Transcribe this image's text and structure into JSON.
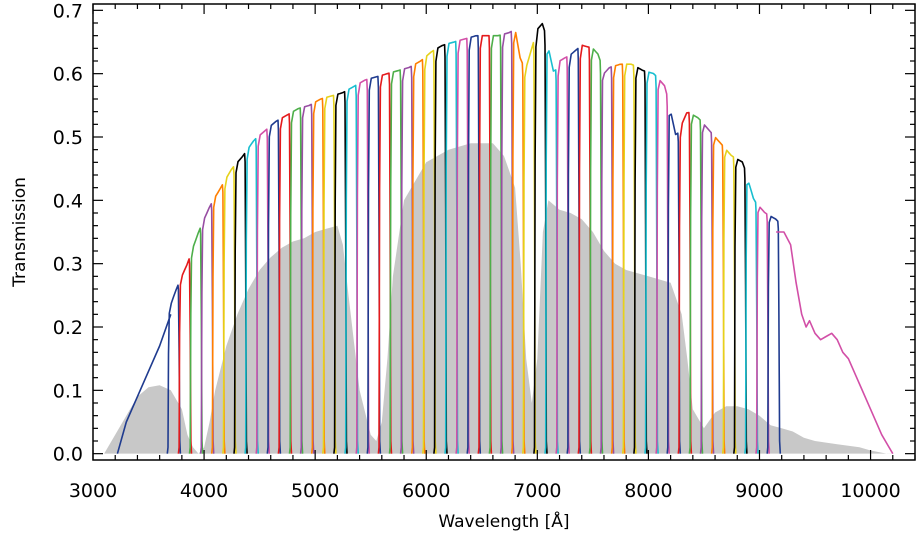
{
  "chart_data": {
    "type": "line",
    "title": "",
    "xlabel": "Wavelength [Å]",
    "ylabel": "Transmission",
    "xlim": [
      3000,
      10400
    ],
    "ylim": [
      -0.01,
      0.71
    ],
    "xticks": [
      3000,
      4000,
      5000,
      6000,
      7000,
      8000,
      9000,
      10000
    ],
    "yticks": [
      0.0,
      0.1,
      0.2,
      0.3,
      0.4,
      0.5,
      0.6,
      0.7
    ],
    "ytick_labels": [
      "0.0",
      "0.1",
      "0.2",
      "0.3",
      "0.4",
      "0.5",
      "0.6",
      "0.7"
    ],
    "x_minor_step": 200,
    "y_minor_step": 0.02,
    "grid": false,
    "legend": "none",
    "series_colors": [
      "#1f3b8f",
      "#e41a1c",
      "#4daf4a",
      "#984ea3",
      "#ff7f00",
      "#e6d21a",
      "#000000",
      "#17becf",
      "#d24fa7"
    ],
    "shaded_area": {
      "color": "#c8c8c8",
      "x": [
        3100,
        3200,
        3300,
        3400,
        3500,
        3600,
        3700,
        3800,
        3850,
        3900,
        3950,
        4000,
        4050,
        4100,
        4200,
        4300,
        4400,
        4500,
        4600,
        4700,
        4800,
        4900,
        5000,
        5100,
        5200,
        5250,
        5300,
        5400,
        5500,
        5550,
        5600,
        5650,
        5700,
        5800,
        6000,
        6200,
        6400,
        6600,
        6700,
        6800,
        6850,
        6900,
        6950,
        7000,
        7050,
        7100,
        7200,
        7300,
        7400,
        7500,
        7600,
        7700,
        7800,
        8000,
        8200,
        8300,
        8350,
        8400,
        8500,
        8600,
        8700,
        8800,
        8900,
        9000,
        9100,
        9200,
        9300,
        9400,
        9500,
        9700,
        9900,
        10000,
        10150,
        10200
      ],
      "y": [
        0.0,
        0.03,
        0.06,
        0.09,
        0.105,
        0.108,
        0.1,
        0.07,
        0.03,
        0.01,
        0.0,
        0.01,
        0.05,
        0.1,
        0.17,
        0.22,
        0.26,
        0.29,
        0.31,
        0.325,
        0.335,
        0.34,
        0.35,
        0.355,
        0.36,
        0.33,
        0.25,
        0.1,
        0.03,
        0.02,
        0.05,
        0.15,
        0.28,
        0.4,
        0.46,
        0.48,
        0.49,
        0.49,
        0.47,
        0.42,
        0.3,
        0.15,
        0.08,
        0.15,
        0.35,
        0.4,
        0.385,
        0.38,
        0.37,
        0.35,
        0.32,
        0.3,
        0.29,
        0.28,
        0.27,
        0.22,
        0.15,
        0.07,
        0.04,
        0.065,
        0.075,
        0.075,
        0.07,
        0.06,
        0.045,
        0.04,
        0.035,
        0.025,
        0.02,
        0.015,
        0.01,
        0.005,
        0.0,
        0.0
      ]
    },
    "envelope": {
      "x": [
        3250,
        3350,
        3450,
        3550,
        3650,
        3750,
        3850,
        3950,
        4050,
        4150,
        4250,
        4350,
        4450,
        4550,
        4650,
        4750,
        4850,
        4950,
        5050,
        5150,
        5250,
        5350,
        5450,
        5550,
        5650,
        5750,
        5850,
        5950,
        6050,
        6150,
        6250,
        6350,
        6450,
        6550,
        6650,
        6750,
        6800,
        6850,
        6900,
        6950,
        7000,
        7050,
        7100,
        7150,
        7200,
        7300,
        7400,
        7500,
        7550,
        7600,
        7650,
        7750,
        7850,
        7950,
        8050,
        8150,
        8250,
        8350,
        8450,
        8550,
        8650,
        8750,
        8850,
        8950,
        9050,
        9150,
        9250
      ],
      "y": [
        0.04,
        0.08,
        0.12,
        0.16,
        0.21,
        0.26,
        0.3,
        0.35,
        0.39,
        0.42,
        0.45,
        0.47,
        0.495,
        0.51,
        0.525,
        0.535,
        0.545,
        0.55,
        0.56,
        0.565,
        0.57,
        0.58,
        0.59,
        0.595,
        0.6,
        0.605,
        0.61,
        0.62,
        0.635,
        0.645,
        0.65,
        0.655,
        0.66,
        0.66,
        0.66,
        0.665,
        0.67,
        0.62,
        0.61,
        0.64,
        0.67,
        0.68,
        0.64,
        0.6,
        0.62,
        0.63,
        0.645,
        0.64,
        0.63,
        0.6,
        0.61,
        0.615,
        0.615,
        0.605,
        0.6,
        0.58,
        0.5,
        0.54,
        0.53,
        0.51,
        0.49,
        0.47,
        0.46,
        0.4,
        0.38,
        0.37,
        0.35
      ]
    },
    "filter_centers": [
      3720,
      3820,
      3920,
      4020,
      4120,
      4220,
      4320,
      4420,
      4520,
      4620,
      4720,
      4820,
      4920,
      5020,
      5120,
      5220,
      5320,
      5420,
      5520,
      5620,
      5720,
      5820,
      5920,
      6020,
      6120,
      6220,
      6320,
      6420,
      6520,
      6620,
      6720,
      6820,
      6920,
      7020,
      7120,
      7220,
      7320,
      7420,
      7520,
      7620,
      7720,
      7820,
      7920,
      8020,
      8120,
      8220,
      8320,
      8420,
      8520,
      8620,
      8720,
      8820,
      8920,
      9020,
      9120
    ],
    "filter_width": 90,
    "series": [
      {
        "color": "#1f3b8f",
        "x": [
          3220,
          3300,
          3400,
          3500,
          3600,
          3700
        ],
        "y": [
          0.0,
          0.05,
          0.09,
          0.13,
          0.17,
          0.22
        ]
      },
      {
        "color": "#d24fa7",
        "x": [
          9150,
          9220,
          9280,
          9330,
          9380,
          9420,
          9450,
          9500,
          9550,
          9600,
          9650,
          9700,
          9750,
          9800,
          9900,
          10000,
          10100,
          10200
        ],
        "y": [
          0.35,
          0.35,
          0.33,
          0.27,
          0.22,
          0.2,
          0.21,
          0.19,
          0.18,
          0.185,
          0.19,
          0.18,
          0.16,
          0.15,
          0.11,
          0.07,
          0.03,
          0.0
        ]
      }
    ]
  }
}
